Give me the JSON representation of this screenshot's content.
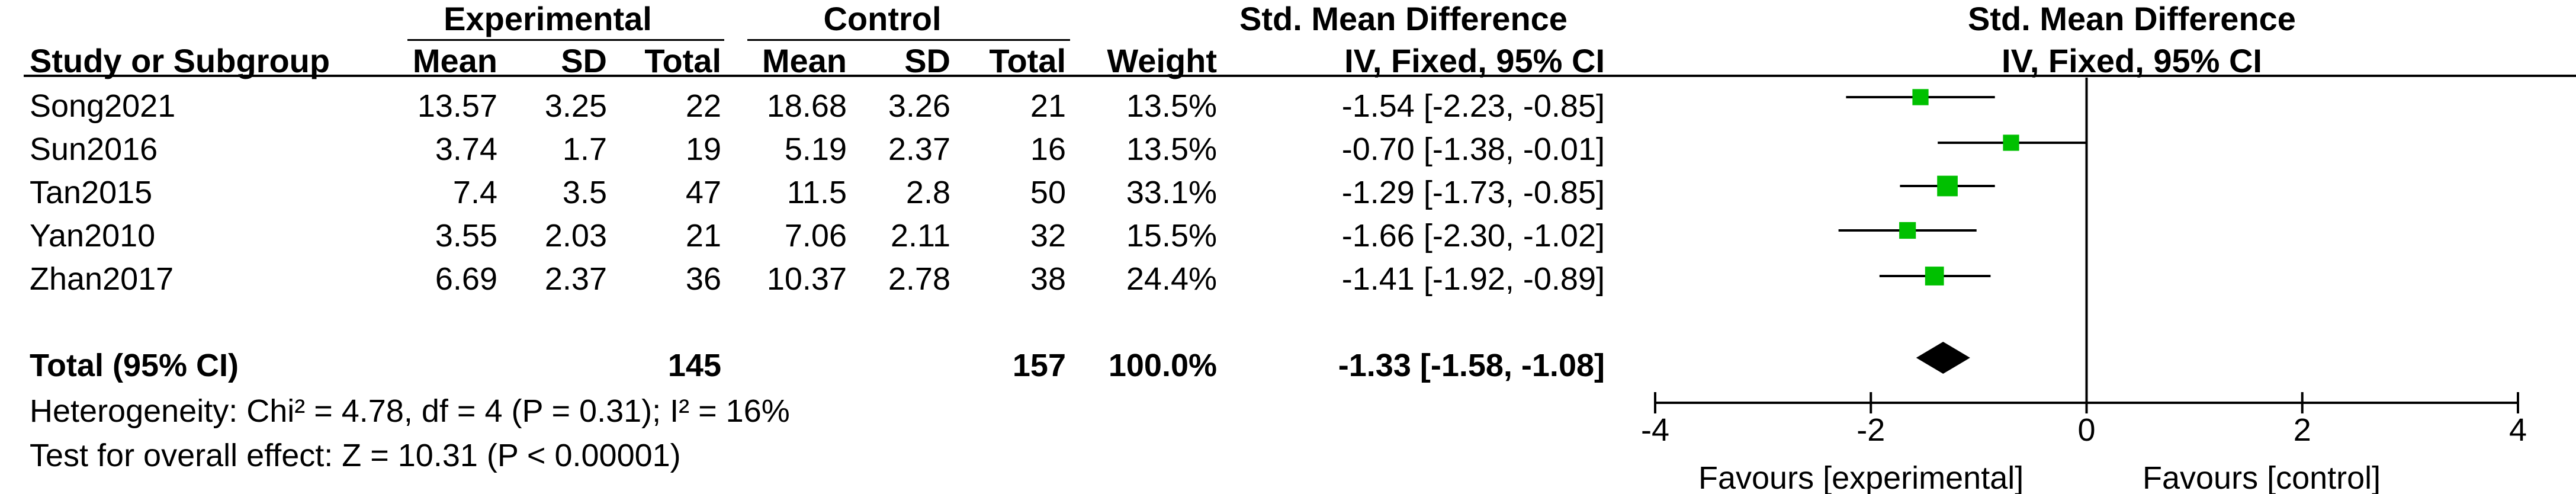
{
  "headers": {
    "group_experimental": "Experimental",
    "group_control": "Control",
    "smd_table": "Std. Mean Difference",
    "smd_plot": "Std. Mean Difference",
    "study": "Study or Subgroup",
    "exp_mean": "Mean",
    "exp_sd": "SD",
    "exp_total": "Total",
    "ctl_mean": "Mean",
    "ctl_sd": "SD",
    "ctl_total": "Total",
    "weight": "Weight",
    "method_table": "IV, Fixed, 95% CI",
    "method_plot": "IV, Fixed, 95% CI"
  },
  "studies": [
    {
      "name": "Song2021",
      "exp_mean": "13.57",
      "exp_sd": "3.25",
      "exp_total": "22",
      "ctl_mean": "18.68",
      "ctl_sd": "3.26",
      "ctl_total": "21",
      "weight": "13.5%",
      "ci_text": "-1.54 [-2.23, -0.85]"
    },
    {
      "name": "Sun2016",
      "exp_mean": "3.74",
      "exp_sd": "1.7",
      "exp_total": "19",
      "ctl_mean": "5.19",
      "ctl_sd": "2.37",
      "ctl_total": "16",
      "weight": "13.5%",
      "ci_text": "-0.70 [-1.38, -0.01]"
    },
    {
      "name": "Tan2015",
      "exp_mean": "7.4",
      "exp_sd": "3.5",
      "exp_total": "47",
      "ctl_mean": "11.5",
      "ctl_sd": "2.8",
      "ctl_total": "50",
      "weight": "33.1%",
      "ci_text": "-1.29 [-1.73, -0.85]"
    },
    {
      "name": "Yan2010",
      "exp_mean": "3.55",
      "exp_sd": "2.03",
      "exp_total": "21",
      "ctl_mean": "7.06",
      "ctl_sd": "2.11",
      "ctl_total": "32",
      "weight": "15.5%",
      "ci_text": "-1.66 [-2.30, -1.02]"
    },
    {
      "name": "Zhan2017",
      "exp_mean": "6.69",
      "exp_sd": "2.37",
      "exp_total": "36",
      "ctl_mean": "10.37",
      "ctl_sd": "2.78",
      "ctl_total": "38",
      "weight": "24.4%",
      "ci_text": "-1.41 [-1.92, -0.89]"
    }
  ],
  "total": {
    "label": "Total (95% CI)",
    "exp_total": "145",
    "ctl_total": "157",
    "weight": "100.0%",
    "ci_text": "-1.33 [-1.58, -1.08]"
  },
  "heterogeneity": "Heterogeneity: Chi² = 4.78, df = 4 (P = 0.31); I² = 16%",
  "overall_effect": "Test for overall effect: Z = 10.31 (P < 0.00001)",
  "favours_left": "Favours [experimental]",
  "favours_right": "Favours [control]",
  "colors": {
    "marker": "#00c000",
    "diamond": "#000000",
    "line": "#000000"
  },
  "chart_data": {
    "type": "scatter",
    "subtype": "forest",
    "xlim": [
      -4,
      4
    ],
    "xticks": [
      -4,
      -2,
      0,
      2,
      4
    ],
    "tick_labels": [
      "-4",
      "-2",
      "0",
      "2",
      "4"
    ],
    "studies": [
      {
        "name": "Song2021",
        "est": -1.54,
        "lo": -2.23,
        "hi": -0.85,
        "weight": 13.5
      },
      {
        "name": "Sun2016",
        "est": -0.7,
        "lo": -1.38,
        "hi": -0.01,
        "weight": 13.5
      },
      {
        "name": "Tan2015",
        "est": -1.29,
        "lo": -1.73,
        "hi": -0.85,
        "weight": 33.1
      },
      {
        "name": "Yan2010",
        "est": -1.66,
        "lo": -2.3,
        "hi": -1.02,
        "weight": 15.5
      },
      {
        "name": "Zhan2017",
        "est": -1.41,
        "lo": -1.92,
        "hi": -0.89,
        "weight": 24.4
      }
    ],
    "pooled": {
      "est": -1.33,
      "lo": -1.58,
      "hi": -1.08
    },
    "grid": false
  }
}
